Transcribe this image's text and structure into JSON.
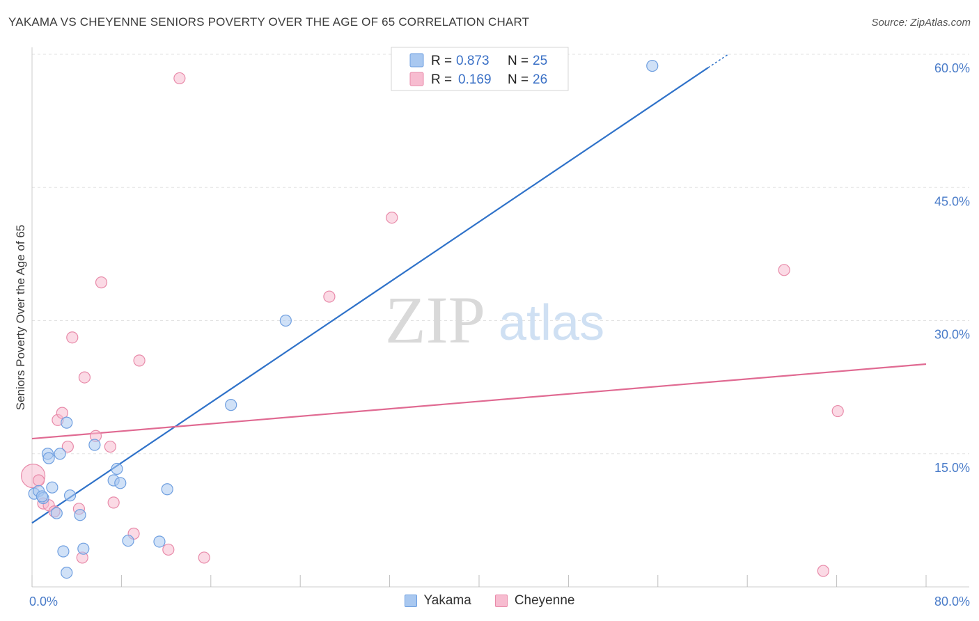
{
  "title": "YAKAMA VS CHEYENNE SENIORS POVERTY OVER THE AGE OF 65 CORRELATION CHART",
  "source": "Source: ZipAtlas.com",
  "watermark": {
    "zip": "ZIP",
    "atlas": "atlas"
  },
  "colors": {
    "yakama_fill": "#a9c8f0",
    "yakama_stroke": "#6f9fe0",
    "yakama_line": "#2f72c9",
    "cheyenne_fill": "#f7bcd0",
    "cheyenne_stroke": "#e88aa9",
    "cheyenne_line": "#e06a92",
    "grid": "#e2e2e2",
    "tick_text": "#4a7cc9"
  },
  "legend": {
    "r_label": "R =",
    "n_label": "N =",
    "yakama_r": "0.873",
    "yakama_n": "25",
    "cheyenne_r": "0.169",
    "cheyenne_n": "26"
  },
  "bottom_legend": {
    "yakama": "Yakama",
    "cheyenne": "Cheyenne"
  },
  "chart_data": {
    "type": "scatter",
    "title": "YAKAMA VS CHEYENNE SENIORS POVERTY OVER THE AGE OF 65 CORRELATION CHART",
    "xlabel": "",
    "ylabel": "Seniors Poverty Over the Age of 65",
    "xlim": [
      0,
      80
    ],
    "ylim": [
      0,
      61
    ],
    "x_tick_labels": [
      {
        "value": 0,
        "label": "0.0%"
      },
      {
        "value": 80,
        "label": "80.0%"
      }
    ],
    "x_ticks": [
      0,
      8,
      16,
      24,
      32,
      40,
      48,
      56,
      64,
      72,
      80
    ],
    "y_ticks": [
      {
        "value": 15,
        "label": "15.0%"
      },
      {
        "value": 30,
        "label": "30.0%"
      },
      {
        "value": 45,
        "label": "45.0%"
      },
      {
        "value": 60,
        "label": "60.0%"
      }
    ],
    "grid": true,
    "series": [
      {
        "name": "Yakama",
        "points": [
          {
            "x": 0.2,
            "y": 10.5
          },
          {
            "x": 0.6,
            "y": 10.8
          },
          {
            "x": 1.0,
            "y": 10.0
          },
          {
            "x": 1.4,
            "y": 15.0
          },
          {
            "x": 1.5,
            "y": 14.5
          },
          {
            "x": 1.8,
            "y": 11.2
          },
          {
            "x": 2.2,
            "y": 8.3
          },
          {
            "x": 2.5,
            "y": 15.0
          },
          {
            "x": 2.8,
            "y": 4.0
          },
          {
            "x": 3.1,
            "y": 18.5
          },
          {
            "x": 3.4,
            "y": 10.3
          },
          {
            "x": 4.3,
            "y": 8.1
          },
          {
            "x": 4.6,
            "y": 4.3
          },
          {
            "x": 5.6,
            "y": 16.0
          },
          {
            "x": 7.3,
            "y": 12.0
          },
          {
            "x": 7.6,
            "y": 13.3
          },
          {
            "x": 7.9,
            "y": 11.7
          },
          {
            "x": 8.6,
            "y": 5.2
          },
          {
            "x": 11.4,
            "y": 5.1
          },
          {
            "x": 12.1,
            "y": 11.0
          },
          {
            "x": 17.8,
            "y": 20.5
          },
          {
            "x": 22.7,
            "y": 30.0
          },
          {
            "x": 55.5,
            "y": 58.7
          },
          {
            "x": 3.1,
            "y": 1.6
          },
          {
            "x": 0.9,
            "y": 10.2
          }
        ],
        "trend": {
          "x0": 0,
          "y0": 7.2,
          "x1": 60.5,
          "y1": 58.5,
          "dashed_to": {
            "x": 62.3,
            "y": 60.0
          }
        }
      },
      {
        "name": "Cheyenne",
        "points": [
          {
            "x": 0.1,
            "y": 12.5
          },
          {
            "x": 0.6,
            "y": 12.0
          },
          {
            "x": 1.0,
            "y": 9.4
          },
          {
            "x": 1.5,
            "y": 9.2
          },
          {
            "x": 2.0,
            "y": 8.5
          },
          {
            "x": 2.3,
            "y": 18.8
          },
          {
            "x": 2.7,
            "y": 19.6
          },
          {
            "x": 3.2,
            "y": 15.8
          },
          {
            "x": 3.6,
            "y": 28.1
          },
          {
            "x": 4.2,
            "y": 8.8
          },
          {
            "x": 4.5,
            "y": 3.3
          },
          {
            "x": 4.7,
            "y": 23.6
          },
          {
            "x": 5.7,
            "y": 17.0
          },
          {
            "x": 6.2,
            "y": 34.3
          },
          {
            "x": 7.0,
            "y": 15.8
          },
          {
            "x": 7.3,
            "y": 9.5
          },
          {
            "x": 9.1,
            "y": 6.0
          },
          {
            "x": 9.6,
            "y": 25.5
          },
          {
            "x": 12.2,
            "y": 4.2
          },
          {
            "x": 13.2,
            "y": 57.3
          },
          {
            "x": 15.4,
            "y": 3.3
          },
          {
            "x": 26.6,
            "y": 32.7
          },
          {
            "x": 32.2,
            "y": 41.6
          },
          {
            "x": 67.3,
            "y": 35.7
          },
          {
            "x": 72.1,
            "y": 19.8
          },
          {
            "x": 70.8,
            "y": 1.8
          }
        ],
        "trend": {
          "x0": 0,
          "y0": 16.7,
          "x1": 80,
          "y1": 25.1
        }
      }
    ]
  }
}
